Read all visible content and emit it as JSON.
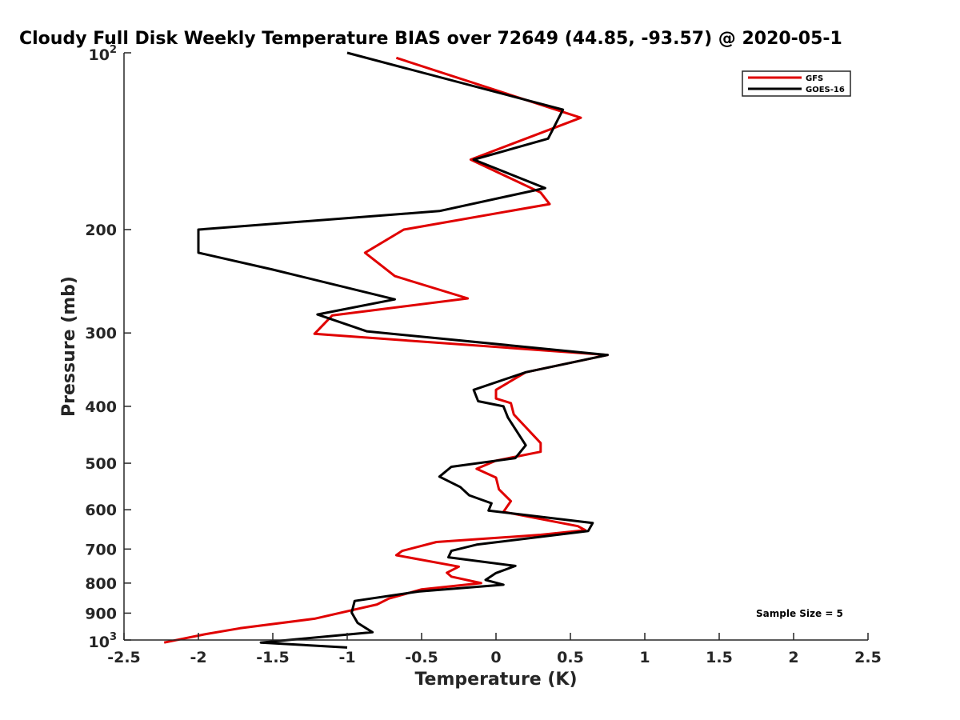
{
  "chart_data": {
    "type": "line",
    "title": "Cloudy Full Disk Weekly Temperature BIAS over 72649 (44.85, -93.57) @ 2020-05-1",
    "xlabel": "Temperature (K)",
    "ylabel": "Pressure (mb)",
    "xlim": [
      -2.5,
      2.5
    ],
    "ylim": [
      1000,
      100
    ],
    "y_scale": "log",
    "x_ticks": [
      -2.5,
      -2,
      -1.5,
      -1,
      -0.5,
      0,
      0.5,
      1,
      1.5,
      2,
      2.5
    ],
    "x_tick_labels": [
      "-2.5",
      "-2",
      "-1.5",
      "-1",
      "-0.5",
      "0",
      "0.5",
      "1",
      "1.5",
      "2",
      "2.5"
    ],
    "y_ticks": [
      {
        "value": 100,
        "base": "10",
        "exp": "2"
      },
      {
        "value": 200,
        "label": "200"
      },
      {
        "value": 300,
        "label": "300"
      },
      {
        "value": 400,
        "label": "400"
      },
      {
        "value": 500,
        "label": "500"
      },
      {
        "value": 600,
        "label": "600"
      },
      {
        "value": 700,
        "label": "700"
      },
      {
        "value": 800,
        "label": "800"
      },
      {
        "value": 900,
        "label": "900"
      },
      {
        "value": 1000,
        "base": "10",
        "exp": "3"
      }
    ],
    "grid": false,
    "legend_position": "top-right",
    "annotation": "Sample Size = 5",
    "series": [
      {
        "name": "GFS",
        "color": "#e00000",
        "x": [
          -0.67,
          0.57,
          -0.17,
          0.3,
          0.36,
          -0.62,
          -0.88,
          -0.68,
          -0.19,
          -1.1,
          -1.22,
          0.75,
          0.2,
          0.0,
          0.0,
          0.1,
          0.12,
          0.3,
          0.3,
          0.0,
          -0.13,
          0.0,
          0.02,
          0.1,
          0.05,
          0.55,
          0.6,
          0.3,
          -0.4,
          -0.63,
          -0.67,
          -0.25,
          -0.33,
          -0.3,
          -0.1,
          -0.5,
          -0.72,
          -0.8,
          -1.22,
          -1.72,
          -1.95,
          -2.23
        ],
        "y": [
          102,
          129,
          152,
          173,
          181,
          200,
          219,
          240,
          262,
          280,
          301,
          327,
          350,
          375,
          388,
          395,
          413,
          462,
          478,
          495,
          511,
          529,
          554,
          580,
          605,
          640,
          650,
          662,
          681,
          705,
          717,
          750,
          768,
          780,
          800,
          820,
          850,
          870,
          920,
          955,
          977,
          1010
        ]
      },
      {
        "name": "GOES-16",
        "color": "#000000",
        "x": [
          -1.0,
          0.45,
          0.35,
          -0.15,
          0.33,
          -0.38,
          -2.0,
          -2.0,
          -1.5,
          -0.68,
          -1.2,
          -0.87,
          0.75,
          0.2,
          -0.15,
          -0.12,
          0.05,
          0.08,
          0.2,
          0.13,
          -0.3,
          -0.38,
          -0.24,
          -0.18,
          -0.03,
          -0.05,
          0.65,
          0.62,
          -0.13,
          -0.3,
          -0.32,
          0.13,
          0.0,
          -0.07,
          0.05,
          -0.52,
          -0.95,
          -0.97,
          -0.93,
          -0.83,
          -1.58,
          -1.0
        ],
        "y": [
          100,
          125,
          140,
          152,
          170,
          186,
          200,
          219,
          234,
          263,
          279,
          298,
          327,
          350,
          375,
          392,
          400,
          418,
          466,
          490,
          507,
          527,
          549,
          567,
          585,
          602,
          632,
          652,
          688,
          705,
          723,
          748,
          769,
          790,
          805,
          827,
          858,
          898,
          935,
          970,
          1010,
          1030
        ]
      }
    ]
  }
}
